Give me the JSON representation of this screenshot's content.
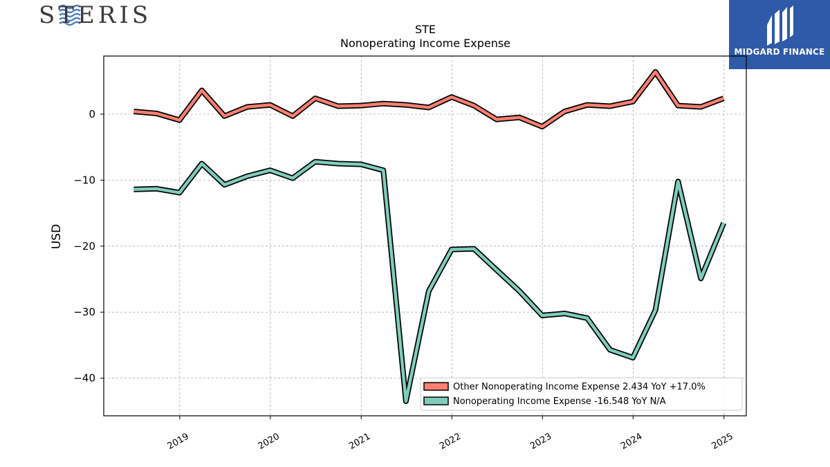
{
  "logo": {
    "company": "STERIS",
    "badge": "MIDGARD FINANCE",
    "brand_color": "#2f5aa8"
  },
  "chart_data": {
    "type": "line",
    "title": "STE",
    "subtitle": "Nonoperating Income Expense",
    "xlabel": "",
    "ylabel": "USD",
    "ylim": [
      -45.7,
      8.8
    ],
    "yticks": [
      0,
      -10,
      -20,
      -30,
      -40
    ],
    "ytick_labels": [
      "0",
      "−10",
      "−20",
      "−30",
      "−40"
    ],
    "xlim": [
      "2018-03-01",
      "2025-04-01"
    ],
    "xticks": [
      "2019-01-01",
      "2020-01-01",
      "2021-01-01",
      "2022-01-01",
      "2023-01-01",
      "2024-01-01",
      "2025-01-01"
    ],
    "xtick_labels": [
      "2019",
      "2020",
      "2021",
      "2022",
      "2023",
      "2024",
      "2025"
    ],
    "grid": true,
    "legend_position": "bottom-right",
    "x": [
      "2018-06-30",
      "2018-09-30",
      "2018-12-31",
      "2019-03-31",
      "2019-06-30",
      "2019-09-30",
      "2019-12-31",
      "2020-03-31",
      "2020-06-30",
      "2020-09-30",
      "2020-12-31",
      "2021-03-31",
      "2021-06-30",
      "2021-09-30",
      "2021-12-31",
      "2022-03-31",
      "2022-06-30",
      "2022-09-30",
      "2022-12-31",
      "2023-03-31",
      "2023-06-30",
      "2023-09-30",
      "2023-12-31",
      "2024-03-31",
      "2024-06-30",
      "2024-09-30",
      "2024-12-31"
    ],
    "series": [
      {
        "name": "Other Nonoperating Income Expense",
        "legend_label": "Other Nonoperating Income Expense  2.434 YoY +17.0%",
        "color": "#fa8072",
        "values": [
          0.4,
          0.1,
          -0.9,
          3.6,
          -0.3,
          1.1,
          1.4,
          -0.3,
          2.4,
          1.2,
          1.3,
          1.6,
          1.4,
          1.0,
          2.6,
          1.3,
          -0.8,
          -0.5,
          -1.9,
          0.4,
          1.4,
          1.2,
          1.9,
          6.4,
          1.3,
          1.1,
          2.4
        ]
      },
      {
        "name": "Nonoperating Income Expense",
        "legend_label": "Nonoperating Income Expense  -16.548 YoY N/A",
        "color": "#7fcdbb",
        "values": [
          -11.4,
          -11.3,
          -11.9,
          -7.5,
          -10.7,
          -9.4,
          -8.5,
          -9.7,
          -7.2,
          -7.5,
          -7.6,
          -8.5,
          -43.5,
          -26.8,
          -20.5,
          -20.4,
          -23.6,
          -26.8,
          -30.5,
          -30.2,
          -30.9,
          -35.7,
          -36.9,
          -29.7,
          -10.2,
          -24.9,
          -16.5
        ]
      }
    ]
  }
}
